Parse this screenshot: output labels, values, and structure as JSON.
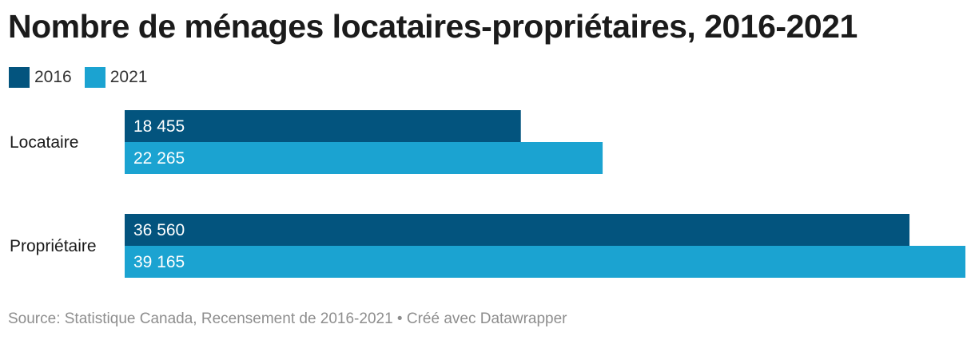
{
  "title": "Nombre de ménages locataires-propriétaires, 2016-2021",
  "source": "Source: Statistique Canada, Recensement de 2016-2021 • Créé avec Datawrapper",
  "colors": {
    "s2016": "#03547e",
    "s2021": "#1ba3d1"
  },
  "chart_data": {
    "type": "bar",
    "orientation": "horizontal",
    "title": "Nombre de ménages locataires-propriétaires, 2016-2021",
    "categories": [
      "Locataire",
      "Propriétaire"
    ],
    "series": [
      {
        "name": "2016",
        "values": [
          18455,
          36560
        ],
        "labels": [
          "18 455",
          "36 560"
        ]
      },
      {
        "name": "2021",
        "values": [
          22265,
          39165
        ],
        "labels": [
          "22 265",
          "39 165"
        ]
      }
    ],
    "xlim": [
      0,
      39165
    ],
    "legend": "top-left",
    "grid": false
  }
}
